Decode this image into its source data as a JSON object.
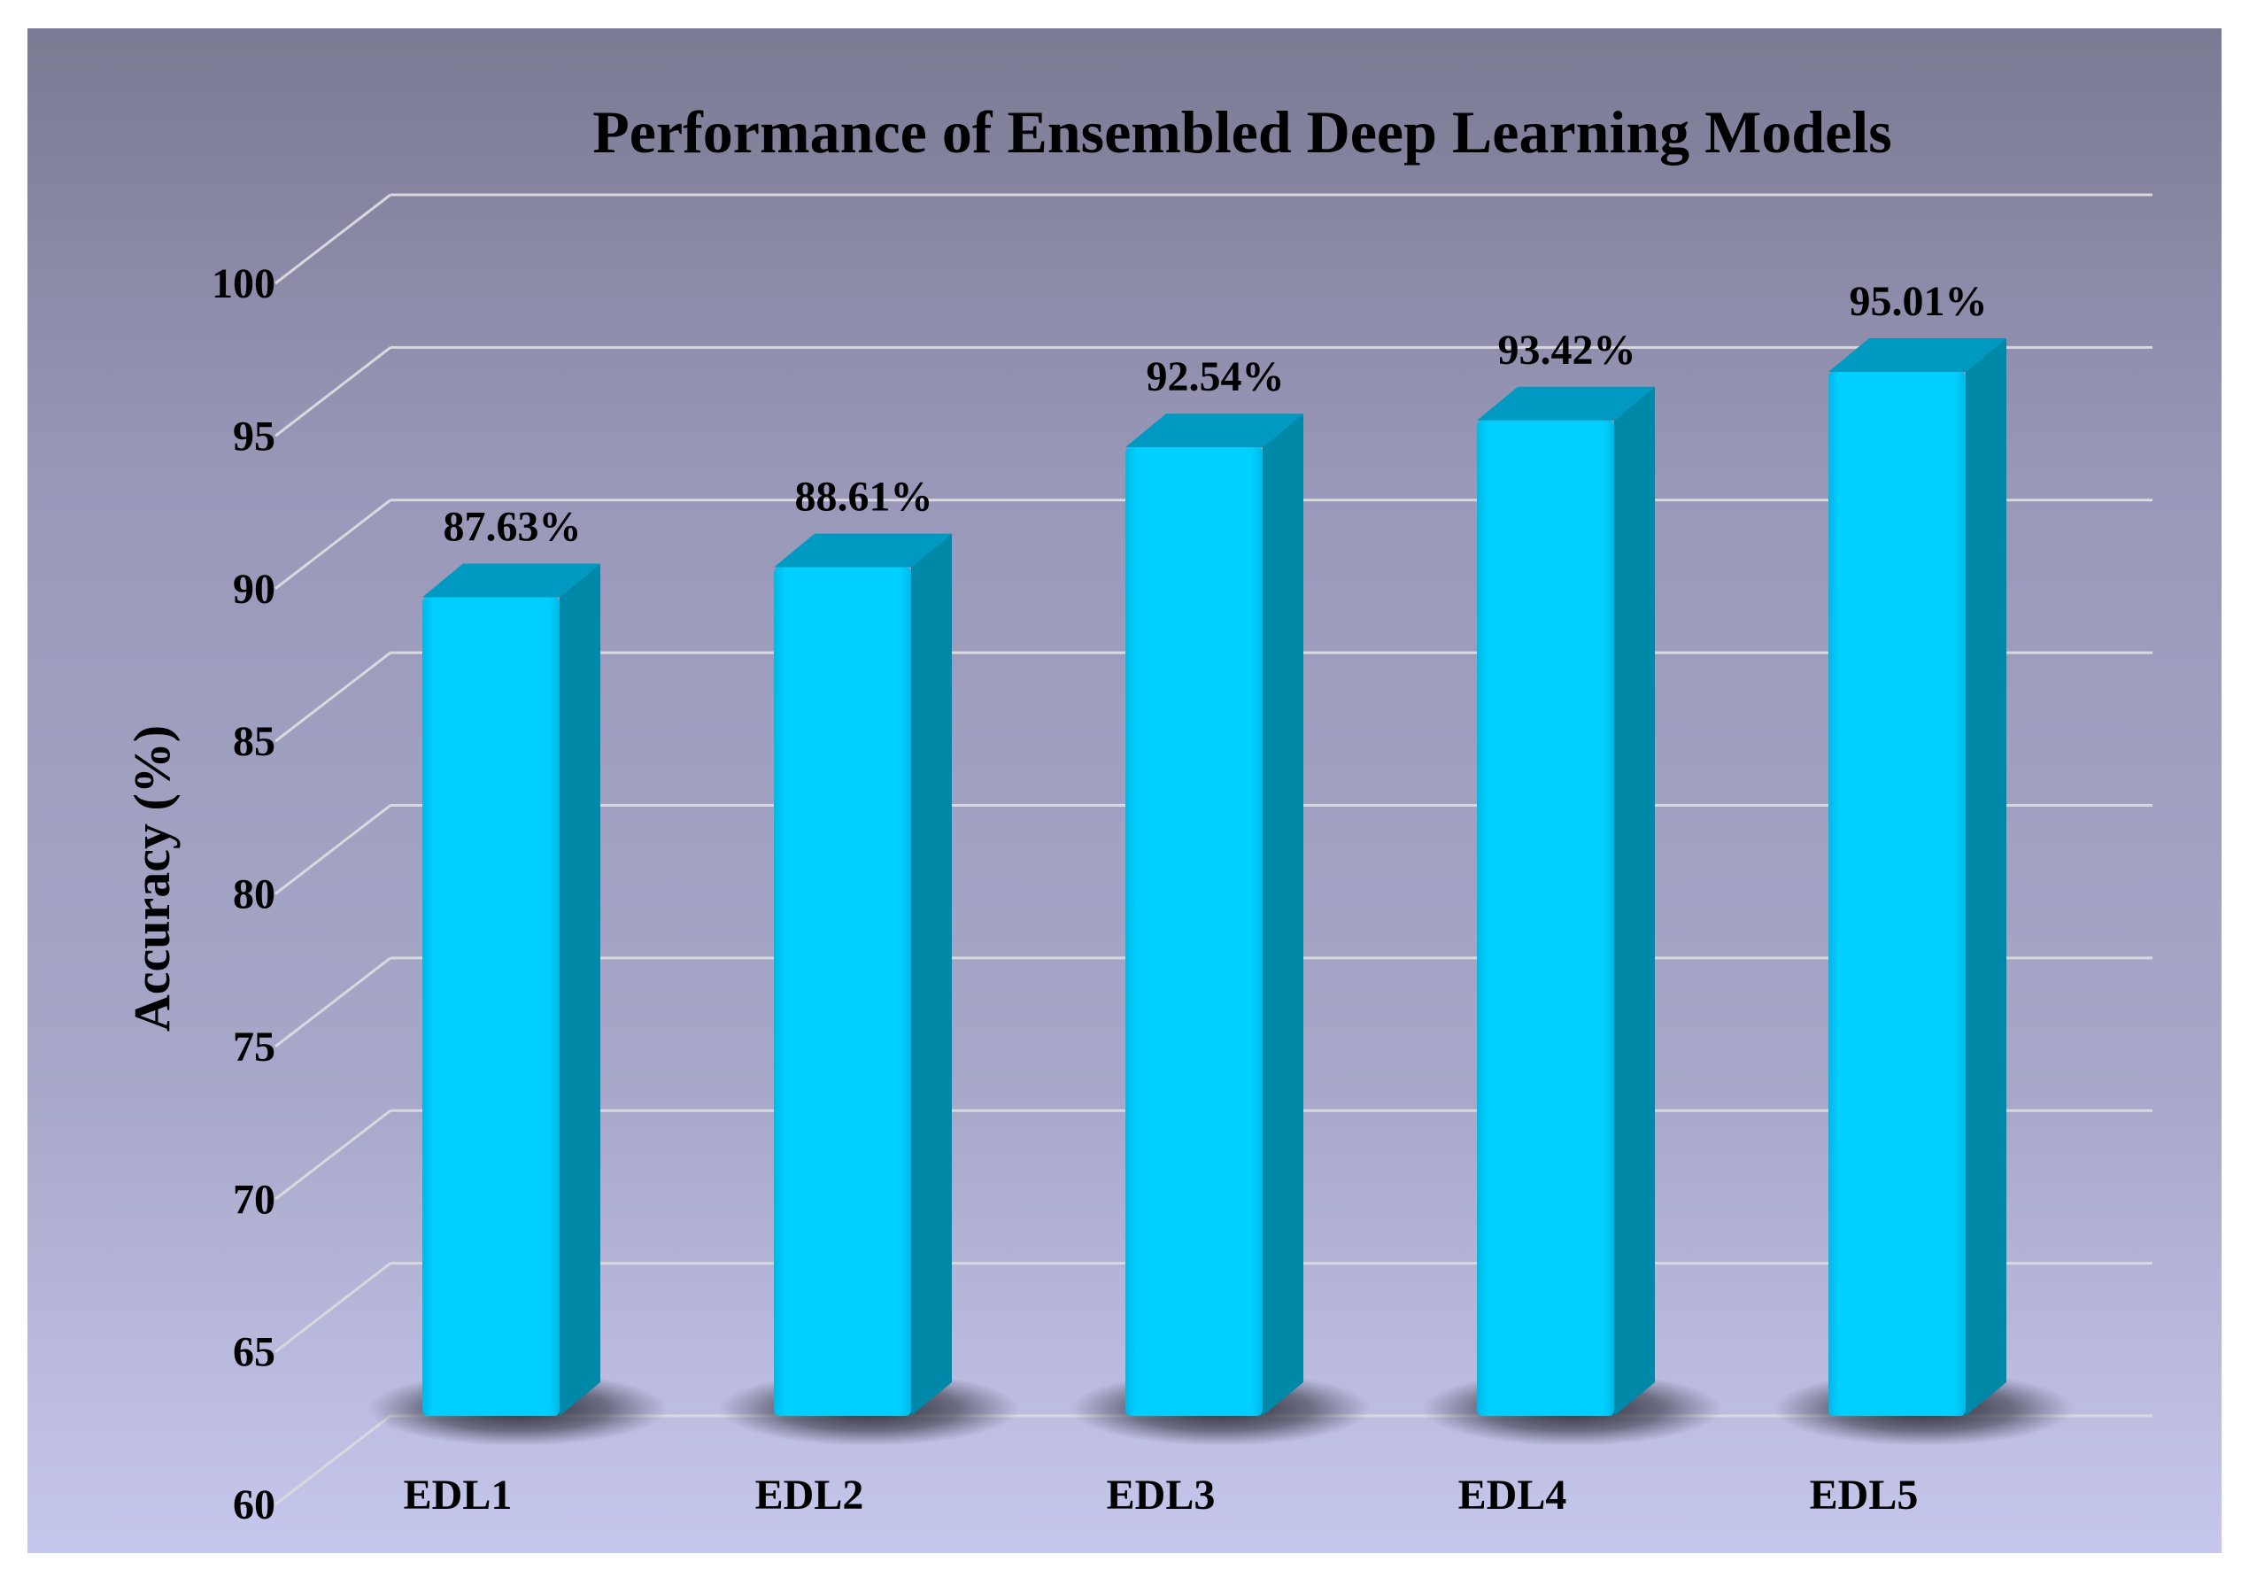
{
  "chart_data": {
    "type": "bar",
    "title": "Performance of Ensembled Deep Learning Models",
    "xlabel": "",
    "ylabel": "Accuracy (%)",
    "categories": [
      "EDL1",
      "EDL2",
      "EDL3",
      "EDL4",
      "EDL5"
    ],
    "values": [
      87.63,
      88.61,
      92.54,
      93.42,
      95.01
    ],
    "data_labels": [
      "87.63%",
      "88.61%",
      "92.54%",
      "93.42%",
      "95.01%"
    ],
    "ylim": [
      60,
      100
    ],
    "yticks": [
      60,
      65,
      70,
      75,
      80,
      85,
      90,
      95,
      100
    ],
    "ytick_labels": [
      "60",
      "65",
      "70",
      "75",
      "80",
      "85",
      "90",
      "95",
      "100"
    ],
    "grid": true,
    "style": "3d-column",
    "colors": {
      "bar_front": "#00cfff",
      "bar_side": "#0088a8",
      "bar_top": "#0099c2",
      "gridline": "#d8d8de"
    }
  }
}
